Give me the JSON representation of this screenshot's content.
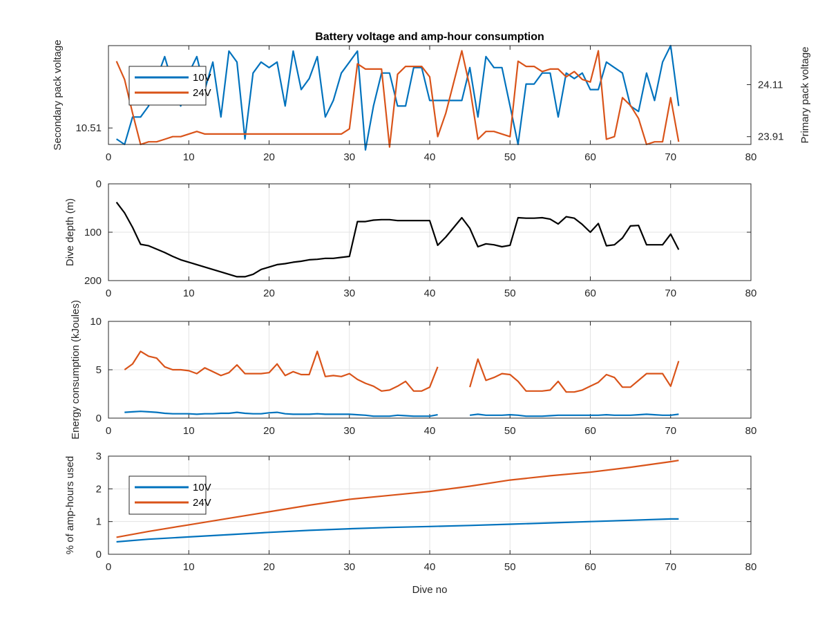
{
  "figure": {
    "background": "#ffffff",
    "axis_color": "#262626",
    "grid_color": "#e3e3e3"
  },
  "chart_data": [
    {
      "type": "line",
      "title": "Battery voltage and amp-hour consumption",
      "xlabel": "",
      "ylabel": "Secondary pack voltage",
      "y2label": "Primary pack voltage",
      "xlim": [
        0,
        80
      ],
      "xticks": [
        0,
        10,
        20,
        30,
        40,
        50,
        60,
        70,
        80
      ],
      "ylim": [
        10.495,
        10.585
      ],
      "yticks": [
        10.51
      ],
      "ytick_labels": [
        "10.51"
      ],
      "y2lim": [
        23.88,
        24.26
      ],
      "y2ticks": [
        23.91,
        24.11
      ],
      "y2tick_labels": [
        "23.91",
        "24.11"
      ],
      "ylabel_color": "#0072BD",
      "y2label_color": "#D95319",
      "grid": false,
      "legend": {
        "position": "top-left",
        "entries": [
          "10V",
          "24V"
        ]
      },
      "x": [
        1,
        2,
        3,
        4,
        5,
        6,
        7,
        8,
        9,
        10,
        11,
        12,
        13,
        14,
        15,
        16,
        17,
        18,
        19,
        20,
        21,
        22,
        23,
        24,
        25,
        26,
        27,
        28,
        29,
        30,
        31,
        32,
        33,
        34,
        35,
        36,
        37,
        38,
        39,
        40,
        41,
        42,
        43,
        44,
        45,
        46,
        47,
        48,
        49,
        50,
        51,
        52,
        53,
        54,
        55,
        56,
        57,
        58,
        59,
        60,
        61,
        62,
        63,
        64,
        65,
        66,
        67,
        68,
        69,
        70,
        71
      ],
      "series": [
        {
          "name": "10V",
          "axis": "left",
          "color": "#0072BD",
          "values": [
            10.5,
            10.495,
            10.52,
            10.52,
            10.53,
            10.555,
            10.575,
            10.55,
            10.53,
            10.56,
            10.575,
            10.545,
            10.57,
            10.52,
            10.58,
            10.57,
            10.5,
            10.56,
            10.57,
            10.565,
            10.57,
            10.53,
            10.58,
            10.545,
            10.555,
            10.575,
            10.52,
            10.535,
            10.56,
            10.57,
            10.58,
            10.49,
            10.53,
            10.56,
            10.56,
            10.53,
            10.53,
            10.565,
            10.565,
            10.535,
            10.535,
            10.535,
            10.535,
            10.535,
            10.565,
            10.52,
            10.575,
            10.565,
            10.565,
            10.53,
            10.495,
            10.55,
            10.55,
            10.56,
            10.56,
            10.52,
            10.56,
            10.555,
            10.56,
            10.545,
            10.545,
            10.57,
            10.565,
            10.56,
            10.53,
            10.525,
            10.56,
            10.535,
            10.57,
            10.585,
            10.53
          ]
        },
        {
          "name": "24V",
          "axis": "right",
          "color": "#D95319",
          "values": [
            24.2,
            24.13,
            24.0,
            23.88,
            23.89,
            23.89,
            23.9,
            23.91,
            23.91,
            23.92,
            23.93,
            23.92,
            23.92,
            23.92,
            23.92,
            23.92,
            23.92,
            23.92,
            23.92,
            23.92,
            23.92,
            23.92,
            23.92,
            23.92,
            23.92,
            23.92,
            23.92,
            23.92,
            23.92,
            23.94,
            24.19,
            24.17,
            24.17,
            24.17,
            23.87,
            24.15,
            24.18,
            24.18,
            24.18,
            24.14,
            23.91,
            24.0,
            24.12,
            24.24,
            24.1,
            23.9,
            23.93,
            23.93,
            23.92,
            23.91,
            24.2,
            24.18,
            24.18,
            24.16,
            24.17,
            24.17,
            24.14,
            24.16,
            24.13,
            24.12,
            24.24,
            23.9,
            23.91,
            24.06,
            24.03,
            23.98,
            23.88,
            23.89,
            23.89,
            24.06,
            23.89
          ]
        }
      ]
    },
    {
      "type": "line",
      "title": "",
      "xlabel": "",
      "ylabel": "Dive depth (m)",
      "xlim": [
        0,
        80
      ],
      "xticks": [
        0,
        10,
        20,
        30,
        40,
        50,
        60,
        70,
        80
      ],
      "ylim": [
        0,
        200
      ],
      "y_reversed": true,
      "yticks": [
        0,
        100,
        200
      ],
      "grid": true,
      "x": [
        1,
        2,
        3,
        4,
        5,
        6,
        7,
        8,
        9,
        10,
        11,
        12,
        13,
        14,
        15,
        16,
        17,
        18,
        19,
        20,
        21,
        22,
        23,
        24,
        25,
        26,
        27,
        28,
        29,
        30,
        31,
        32,
        33,
        34,
        35,
        36,
        37,
        38,
        39,
        40,
        41,
        42,
        43,
        44,
        45,
        46,
        47,
        48,
        49,
        50,
        51,
        52,
        53,
        54,
        55,
        56,
        57,
        58,
        59,
        60,
        61,
        62,
        63,
        64,
        65,
        66,
        67,
        68,
        69,
        70,
        71
      ],
      "series": [
        {
          "color": "#000000",
          "values": [
            38,
            60,
            90,
            125,
            128,
            135,
            142,
            150,
            157,
            162,
            167,
            172,
            177,
            182,
            187,
            192,
            192,
            187,
            177,
            172,
            167,
            165,
            162,
            160,
            157,
            156,
            154,
            154,
            152,
            150,
            78,
            78,
            75,
            74,
            74,
            76,
            76,
            76,
            76,
            76,
            127,
            110,
            90,
            70,
            92,
            130,
            124,
            126,
            130,
            127,
            70,
            71,
            71,
            70,
            73,
            83,
            68,
            71,
            84,
            100,
            82,
            128,
            126,
            112,
            87,
            86,
            126,
            126,
            126,
            104,
            136
          ]
        }
      ]
    },
    {
      "type": "line",
      "title": "",
      "xlabel": "",
      "ylabel": "Energy consumption (kJoules)",
      "xlim": [
        0,
        80
      ],
      "xticks": [
        0,
        10,
        20,
        30,
        40,
        50,
        60,
        70,
        80
      ],
      "ylim": [
        0,
        10
      ],
      "yticks": [
        0,
        5,
        10
      ],
      "grid": true,
      "x": [
        2,
        3,
        4,
        5,
        6,
        7,
        8,
        9,
        10,
        11,
        12,
        13,
        14,
        15,
        16,
        17,
        18,
        19,
        20,
        21,
        22,
        23,
        24,
        25,
        26,
        27,
        28,
        29,
        30,
        31,
        32,
        33,
        34,
        35,
        36,
        37,
        38,
        39,
        40,
        41,
        45,
        46,
        47,
        48,
        49,
        50,
        51,
        52,
        53,
        54,
        55,
        56,
        57,
        58,
        59,
        60,
        61,
        62,
        63,
        64,
        65,
        66,
        67,
        68,
        69,
        70,
        71
      ],
      "series": [
        {
          "color": "#0072BD",
          "values": [
            0.6,
            0.65,
            0.7,
            0.65,
            0.6,
            0.5,
            0.45,
            0.45,
            0.45,
            0.4,
            0.45,
            0.45,
            0.5,
            0.5,
            0.6,
            0.5,
            0.45,
            0.45,
            0.55,
            0.6,
            0.45,
            0.4,
            0.4,
            0.4,
            0.45,
            0.4,
            0.4,
            0.4,
            0.4,
            0.35,
            0.3,
            0.2,
            0.2,
            0.2,
            0.3,
            0.25,
            0.2,
            0.2,
            0.2,
            0.35,
            0.3,
            0.4,
            0.3,
            0.3,
            0.3,
            0.35,
            0.3,
            0.2,
            0.2,
            0.2,
            0.25,
            0.3,
            0.3,
            0.3,
            0.3,
            0.3,
            0.3,
            0.35,
            0.3,
            0.3,
            0.3,
            0.35,
            0.4,
            0.35,
            0.3,
            0.3,
            0.4
          ]
        },
        {
          "color": "#D95319",
          "values": [
            5.0,
            5.6,
            6.9,
            6.4,
            6.2,
            5.3,
            5.0,
            5.0,
            4.9,
            4.6,
            5.2,
            4.8,
            4.4,
            4.7,
            5.5,
            4.6,
            4.6,
            4.6,
            4.7,
            5.6,
            4.4,
            4.8,
            4.5,
            4.5,
            6.9,
            4.3,
            4.4,
            4.3,
            4.6,
            4.0,
            3.6,
            3.3,
            2.8,
            2.9,
            3.3,
            3.8,
            2.8,
            2.8,
            3.2,
            5.3,
            3.2,
            6.1,
            3.9,
            4.2,
            4.6,
            4.5,
            3.8,
            2.8,
            2.8,
            2.8,
            2.9,
            3.8,
            2.7,
            2.7,
            2.9,
            3.3,
            3.7,
            4.5,
            4.2,
            3.2,
            3.2,
            3.9,
            4.6,
            4.6,
            4.6,
            3.3,
            5.9
          ]
        }
      ]
    },
    {
      "type": "line",
      "title": "",
      "xlabel": "Dive no",
      "ylabel": "% of amp-hours used",
      "xlim": [
        0,
        80
      ],
      "xticks": [
        0,
        10,
        20,
        30,
        40,
        50,
        60,
        70,
        80
      ],
      "ylim": [
        0,
        3
      ],
      "yticks": [
        0,
        1,
        2,
        3
      ],
      "grid": true,
      "legend": {
        "position": "top-left",
        "entries": [
          "10V",
          "24V"
        ]
      },
      "x": [
        1,
        5,
        10,
        15,
        20,
        25,
        30,
        35,
        40,
        45,
        50,
        55,
        60,
        65,
        70,
        71
      ],
      "series": [
        {
          "name": "10V",
          "color": "#0072BD",
          "values": [
            0.38,
            0.46,
            0.53,
            0.6,
            0.67,
            0.73,
            0.78,
            0.82,
            0.85,
            0.88,
            0.92,
            0.96,
            1.0,
            1.04,
            1.08,
            1.08
          ]
        },
        {
          "name": "24V",
          "color": "#D95319",
          "values": [
            0.52,
            0.7,
            0.9,
            1.1,
            1.3,
            1.5,
            1.68,
            1.8,
            1.92,
            2.08,
            2.27,
            2.4,
            2.51,
            2.66,
            2.83,
            2.87
          ]
        }
      ]
    }
  ]
}
